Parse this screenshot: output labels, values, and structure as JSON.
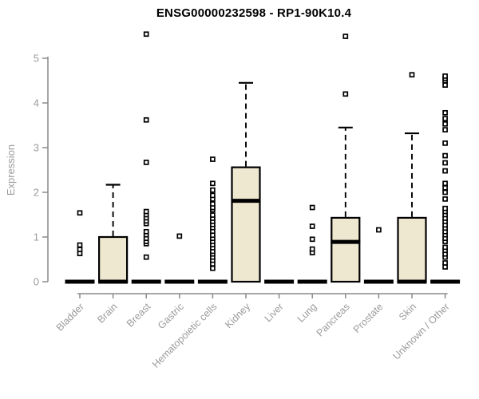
{
  "chart_data": {
    "type": "boxplot",
    "title": "ENSG00000232598 - RP1-90K10.4",
    "ylabel": "Expression",
    "xlabel": "",
    "ylim": [
      0,
      5.6
    ],
    "yticks": [
      0,
      1,
      2,
      3,
      4,
      5
    ],
    "grid": false,
    "legend": "none",
    "categories": [
      "Bladder",
      "Brain",
      "Breast",
      "Gastric",
      "Hematopoietic cells",
      "Kidney",
      "Liver",
      "Lung",
      "Pancreas",
      "Prostate",
      "Skin",
      "Unknown / Other"
    ],
    "series": [
      {
        "category": "Bladder",
        "q1": 0,
        "median": 0,
        "q3": 0,
        "whisker_low": 0,
        "whisker_high": 0,
        "outliers": [
          0.63,
          0.72,
          0.82,
          1.54
        ]
      },
      {
        "category": "Brain",
        "q1": 0,
        "median": 0,
        "q3": 1.0,
        "whisker_low": 0,
        "whisker_high": 2.17,
        "outliers": []
      },
      {
        "category": "Breast",
        "q1": 0,
        "median": 0,
        "q3": 0,
        "whisker_low": 0,
        "whisker_high": 0,
        "outliers": [
          0.55,
          0.85,
          0.9,
          0.97,
          1.05,
          1.12,
          1.3,
          1.36,
          1.43,
          1.5,
          1.57,
          2.67,
          3.62,
          5.54
        ]
      },
      {
        "category": "Gastric",
        "q1": 0,
        "median": 0,
        "q3": 0,
        "whisker_low": 0,
        "whisker_high": 0,
        "outliers": [
          1.02
        ]
      },
      {
        "category": "Hematopoietic cells",
        "q1": 0,
        "median": 0,
        "q3": 0,
        "whisker_low": 0,
        "whisker_high": 0,
        "outliers": [
          0.3,
          0.4,
          0.48,
          0.55,
          0.62,
          0.68,
          0.76,
          0.83,
          0.9,
          0.97,
          1.04,
          1.13,
          1.21,
          1.28,
          1.35,
          1.42,
          1.49,
          1.61,
          1.66,
          1.74,
          1.85,
          1.93,
          2.05,
          2.2,
          2.74
        ]
      },
      {
        "category": "Kidney",
        "q1": 0,
        "median": 1.81,
        "q3": 2.56,
        "whisker_low": 0,
        "whisker_high": 4.45,
        "outliers": []
      },
      {
        "category": "Liver",
        "q1": 0,
        "median": 0,
        "q3": 0,
        "whisker_low": 0,
        "whisker_high": 0,
        "outliers": []
      },
      {
        "category": "Lung",
        "q1": 0,
        "median": 0,
        "q3": 0,
        "whisker_low": 0,
        "whisker_high": 0,
        "outliers": [
          0.65,
          0.73,
          0.95,
          1.24,
          1.66
        ]
      },
      {
        "category": "Pancreas",
        "q1": 0,
        "median": 0.89,
        "q3": 1.43,
        "whisker_low": 0,
        "whisker_high": 3.45,
        "outliers": [
          4.2,
          5.49
        ]
      },
      {
        "category": "Prostate",
        "q1": 0,
        "median": 0,
        "q3": 0,
        "whisker_low": 0,
        "whisker_high": 0,
        "outliers": [
          1.16
        ]
      },
      {
        "category": "Skin",
        "q1": 0,
        "median": 0,
        "q3": 1.43,
        "whisker_low": 0,
        "whisker_high": 3.32,
        "outliers": [
          4.63
        ]
      },
      {
        "category": "Unknown / Other",
        "q1": 0,
        "median": 0,
        "q3": 0,
        "whisker_low": 0,
        "whisker_high": 0,
        "outliers": [
          0.33,
          0.42,
          0.55,
          0.62,
          0.7,
          0.77,
          0.9,
          0.97,
          1.05,
          1.12,
          1.2,
          1.27,
          1.35,
          1.42,
          1.5,
          1.57,
          1.64,
          1.85,
          2.0,
          2.1,
          2.2,
          2.48,
          2.66,
          2.82,
          3.1,
          3.4,
          3.53,
          3.65,
          3.78,
          4.4,
          4.5,
          4.55,
          4.6
        ]
      }
    ],
    "marker": "open-square",
    "colors": {
      "box_fill": "#EFE8D1",
      "box_border": "#000000",
      "median": "#000000",
      "whisker": "#000000",
      "outlier_fill": "#ffffff",
      "outlier_border": "#000000",
      "axis": "#8a8a8a",
      "tick_label": "#9b9b9b",
      "title": "#000000",
      "background": "#ffffff"
    }
  }
}
